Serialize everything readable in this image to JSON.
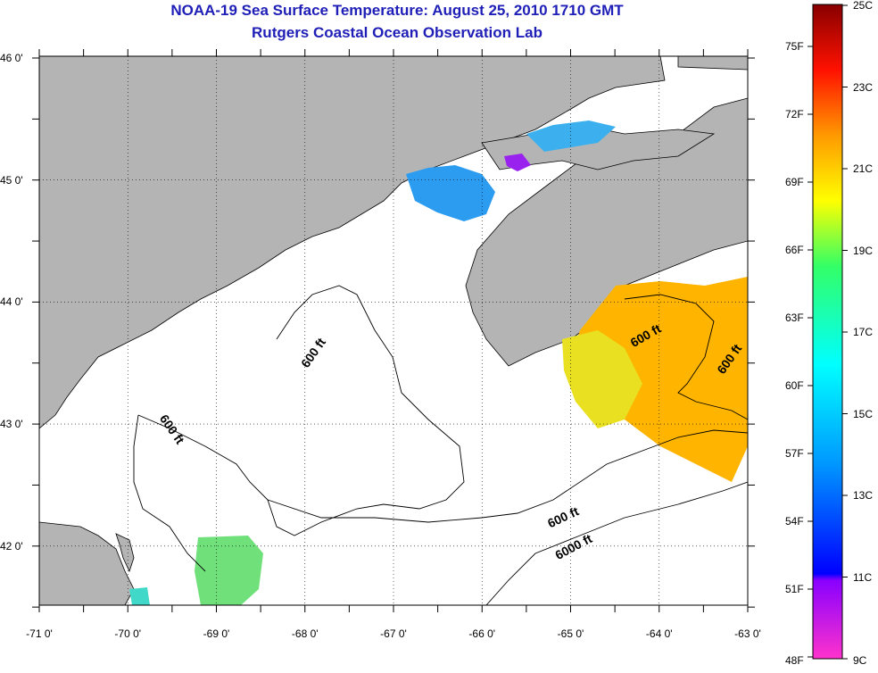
{
  "header": {
    "title": "NOAA-19 Sea Surface Temperature:  August 25, 2010 1710 GMT",
    "subtitle": "Rutgers Coastal Ocean Observation Lab"
  },
  "map": {
    "x_tick_labels": [
      "-71 0'",
      "-70 0'",
      "-69 0'",
      "-68 0'",
      "-67 0'",
      "-66 0'",
      "-65 0'",
      "-64 0'",
      "-63 0'"
    ],
    "y_tick_labels": [
      "46 0'",
      "45 0'",
      "44 0'",
      "43 0'",
      "42 0'"
    ],
    "lon_range": [
      -71,
      -63
    ],
    "lat_range": [
      41.5,
      46
    ],
    "contour_labels": [
      "600 ft",
      "600 ft",
      "600 ft",
      "600 ft",
      "600 ft",
      "6000 ft"
    ],
    "colors": {
      "land": "#b4b4b4",
      "ocean": "#ffffff",
      "title": "#1f1fb8"
    }
  },
  "colorbar": {
    "fahrenheit_labels": [
      "75F",
      "72F",
      "69F",
      "66F",
      "63F",
      "60F",
      "57F",
      "54F",
      "51F",
      "48F"
    ],
    "celsius_labels": [
      "25C",
      "23C",
      "21C",
      "19C",
      "17C",
      "15C",
      "13C",
      "11C",
      "9C"
    ],
    "range_c": [
      9,
      25
    ]
  }
}
